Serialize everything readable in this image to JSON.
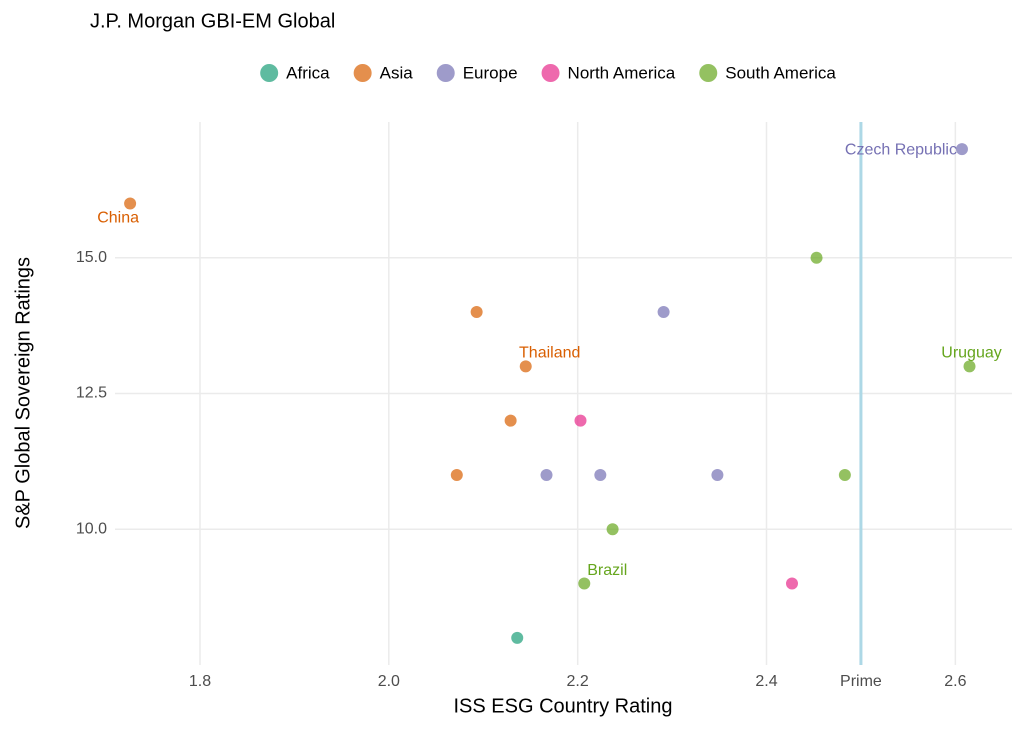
{
  "chart_data": {
    "type": "scatter",
    "title": "J.P. Morgan GBI-EM Global",
    "x_label": "ISS ESG Country Rating",
    "y_label": "S&P Global Sovereign Ratings",
    "series": [
      {
        "name": "Africa",
        "color": "#1b9e77",
        "x": [
          2.136
        ],
        "values": [
          8
        ],
        "point_labels": [
          null
        ]
      },
      {
        "name": "Asia",
        "color": "#d95f02",
        "x": [
          1.726,
          2.093,
          2.145,
          2.129,
          2.072
        ],
        "values": [
          16,
          14,
          13,
          12,
          11
        ],
        "point_labels": [
          "China",
          null,
          "Thailand",
          null,
          null
        ]
      },
      {
        "name": "Europe",
        "color": "#7570b3",
        "x": [
          2.607,
          2.291,
          2.167,
          2.224,
          2.348
        ],
        "values": [
          17,
          14,
          11,
          11,
          11
        ],
        "point_labels": [
          "Czech Republic",
          null,
          null,
          null,
          null
        ]
      },
      {
        "name": "North America",
        "color": "#e7298a",
        "x": [
          2.203,
          2.427
        ],
        "values": [
          12,
          9
        ],
        "point_labels": [
          null,
          null
        ]
      },
      {
        "name": "South America",
        "color": "#66a61e",
        "x": [
          2.453,
          2.615,
          2.483,
          2.237,
          2.207
        ],
        "values": [
          15,
          13,
          11,
          10,
          9
        ],
        "point_labels": [
          null,
          "Uruguay",
          null,
          null,
          "Brazil"
        ]
      }
    ],
    "xlim": [
      1.71,
      2.66
    ],
    "ylim": [
      7.5,
      17.5
    ],
    "xticks": [
      1.8,
      {
        "value": 2,
        "label": "2.0"
      },
      2.2,
      2.4,
      {
        "value": 2.5,
        "label": "Prime"
      },
      2.6
    ],
    "yticks": [
      {
        "value": 10,
        "label": "10.0"
      },
      12.5,
      {
        "value": 15,
        "label": "15.0"
      }
    ],
    "vline": {
      "value": 2.5,
      "color": "#add8e6"
    },
    "grid": true,
    "legend_position": "top",
    "point_opacity": 0.7
  }
}
